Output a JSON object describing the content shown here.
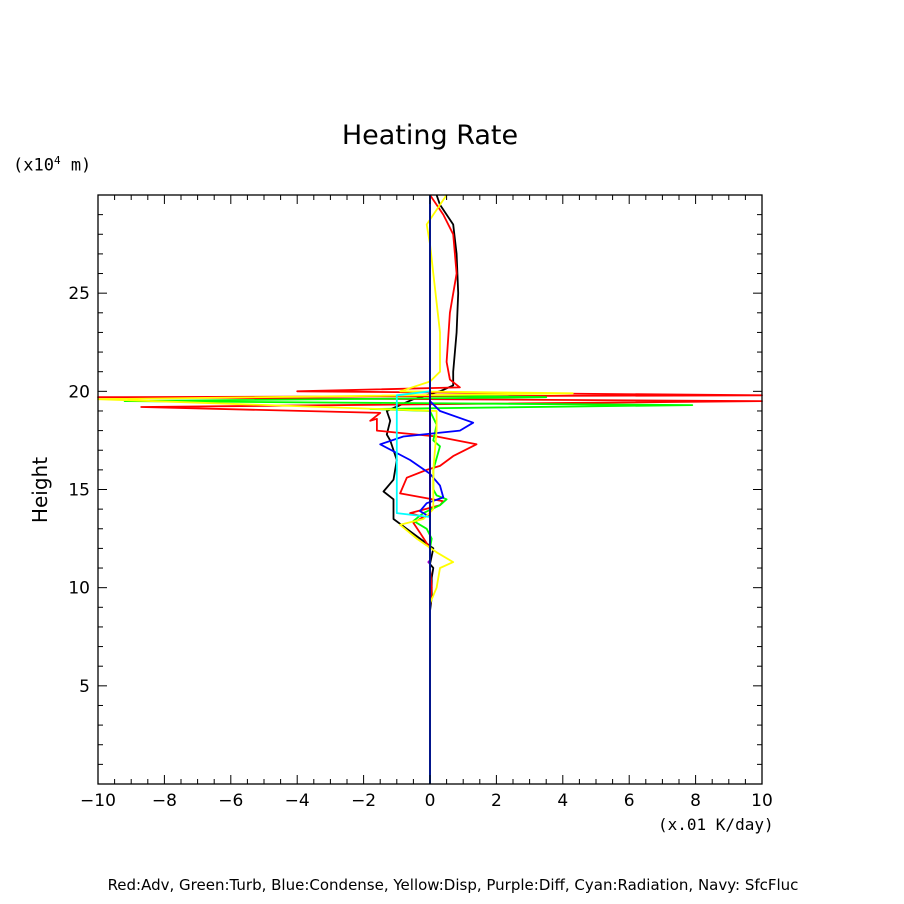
{
  "chart_data": {
    "type": "line",
    "title": "Heating Rate",
    "ylabel": "Height",
    "yunit_prefix": "(x10",
    "yunit_exp": "4",
    "yunit_suffix": " m)",
    "xunit": "(x.01 K/day)",
    "xlim": [
      -10,
      10
    ],
    "ylim": [
      0,
      30
    ],
    "xticks": [
      -10,
      -8,
      -6,
      -4,
      -2,
      0,
      2,
      4,
      6,
      8,
      10
    ],
    "xtick_labels": [
      "−10",
      "−8",
      "−6",
      "−4",
      "−2",
      "0",
      "2",
      "4",
      "6",
      "8",
      "10"
    ],
    "yticks": [
      5,
      10,
      15,
      20,
      25
    ],
    "legend_text": "Red:Adv, Green:Turb, Blue:Condense, Yellow:Disp, Purple:Diff, Cyan:Radiation, Navy: SfcFluc",
    "grid": false,
    "series": [
      {
        "name": "Black",
        "color": "#000000",
        "points": [
          [
            0,
            0
          ],
          [
            0,
            8.8
          ],
          [
            0.05,
            9.5
          ],
          [
            0.05,
            10.5
          ],
          [
            0.1,
            11
          ],
          [
            0,
            11.2
          ],
          [
            0.1,
            12
          ],
          [
            -0.3,
            12.5
          ],
          [
            -0.7,
            13
          ],
          [
            -1.1,
            13.5
          ],
          [
            -1.1,
            14
          ],
          [
            -1.1,
            14.5
          ],
          [
            -1.4,
            14.9
          ],
          [
            -1.1,
            15.5
          ],
          [
            -1.0,
            16.5
          ],
          [
            -1.2,
            17.5
          ],
          [
            -1.3,
            17.8
          ],
          [
            -1.2,
            18.5
          ],
          [
            -1.3,
            19
          ],
          [
            -0.5,
            19.6
          ],
          [
            0.3,
            20
          ],
          [
            0.7,
            20.3
          ],
          [
            0.7,
            21
          ],
          [
            0.8,
            23
          ],
          [
            0.85,
            25
          ],
          [
            0.8,
            27
          ],
          [
            0.7,
            28.5
          ],
          [
            0.3,
            29.5
          ],
          [
            0.2,
            30
          ]
        ]
      },
      {
        "name": "Red",
        "color": "#ff0000",
        "points": [
          [
            0,
            0
          ],
          [
            0,
            9
          ],
          [
            0.05,
            10
          ],
          [
            0,
            11
          ],
          [
            0,
            12
          ],
          [
            -0.3,
            12.8
          ],
          [
            -0.5,
            13.3
          ],
          [
            -0.2,
            13.6
          ],
          [
            -0.6,
            13.8
          ],
          [
            0.3,
            14.2
          ],
          [
            0.4,
            14.4
          ],
          [
            -0.9,
            14.8
          ],
          [
            -0.7,
            15.6
          ],
          [
            -0.1,
            16
          ],
          [
            0.3,
            16.2
          ],
          [
            0.7,
            16.7
          ],
          [
            1.4,
            17.3
          ],
          [
            0.2,
            17.7
          ],
          [
            -1.0,
            17.9
          ],
          [
            -1.6,
            18
          ],
          [
            -1.6,
            18.6
          ],
          [
            -1.8,
            18.5
          ],
          [
            -1.5,
            18.9
          ],
          [
            -8.7,
            19.2
          ],
          [
            10.5,
            19.5
          ],
          [
            -10.5,
            19.7
          ],
          [
            10.5,
            19.8
          ],
          [
            -4,
            20.0
          ],
          [
            0.9,
            20.2
          ],
          [
            0.6,
            20.6
          ],
          [
            0.5,
            21.5
          ],
          [
            0.6,
            24
          ],
          [
            0.8,
            26
          ],
          [
            0.7,
            28
          ],
          [
            0.4,
            29
          ],
          [
            0.0,
            30
          ]
        ]
      },
      {
        "name": "Green",
        "color": "#00ff00",
        "points": [
          [
            0,
            0
          ],
          [
            0,
            12
          ],
          [
            0.05,
            12.5
          ],
          [
            -0.1,
            13
          ],
          [
            -0.5,
            13.4
          ],
          [
            -0.2,
            13.8
          ],
          [
            0.3,
            14.2
          ],
          [
            0.5,
            14.5
          ],
          [
            0.2,
            14.7
          ],
          [
            0.1,
            15
          ],
          [
            0.1,
            16
          ],
          [
            0.3,
            17.2
          ],
          [
            0.1,
            17.5
          ],
          [
            0.2,
            18.3
          ],
          [
            0,
            19
          ],
          [
            -1.8,
            19.1
          ],
          [
            7.9,
            19.3
          ],
          [
            -9.2,
            19.5
          ],
          [
            3.5,
            19.7
          ],
          [
            0,
            19.8
          ],
          [
            0,
            30
          ]
        ]
      },
      {
        "name": "Blue",
        "color": "#0000ff",
        "points": [
          [
            0,
            0
          ],
          [
            0,
            13.6
          ],
          [
            -0.3,
            13.9
          ],
          [
            -0.1,
            14.3
          ],
          [
            0.4,
            14.6
          ],
          [
            0.3,
            15.2
          ],
          [
            0,
            15.8
          ],
          [
            -0.6,
            16.5
          ],
          [
            -1.5,
            17.3
          ],
          [
            -0.8,
            17.7
          ],
          [
            0.9,
            18
          ],
          [
            1.3,
            18.4
          ],
          [
            0.3,
            19
          ],
          [
            0,
            19.5
          ],
          [
            0,
            30
          ]
        ]
      },
      {
        "name": "Yellow",
        "color": "#ffff00",
        "points": [
          [
            0,
            0
          ],
          [
            0,
            9.2
          ],
          [
            0.2,
            10
          ],
          [
            0.3,
            11
          ],
          [
            0.7,
            11.3
          ],
          [
            0.2,
            11.8
          ],
          [
            -0.4,
            12.5
          ],
          [
            -0.9,
            13.2
          ],
          [
            -0.2,
            13.5
          ],
          [
            0.1,
            14
          ],
          [
            0.1,
            16
          ],
          [
            0.2,
            18
          ],
          [
            0.2,
            19
          ],
          [
            -10.5,
            19.6
          ],
          [
            4.3,
            19.9
          ],
          [
            -0.9,
            20.0
          ],
          [
            0,
            20.5
          ],
          [
            0.3,
            21
          ],
          [
            0.3,
            23
          ],
          [
            0.1,
            26
          ],
          [
            0,
            27.5
          ],
          [
            -0.1,
            28.5
          ],
          [
            0.3,
            29.5
          ],
          [
            0.5,
            30
          ]
        ]
      },
      {
        "name": "Purple",
        "color": "#9900cc",
        "points": [
          [
            0,
            0
          ],
          [
            0,
            11.2
          ],
          [
            -0.05,
            11.3
          ],
          [
            0,
            11.4
          ],
          [
            0,
            30
          ]
        ]
      },
      {
        "name": "Cyan",
        "color": "#00ffff",
        "points": [
          [
            0,
            0
          ],
          [
            0,
            13.6
          ],
          [
            -1.0,
            13.8
          ],
          [
            -1.0,
            17.8
          ],
          [
            -1.0,
            19.8
          ],
          [
            -0.5,
            19.9
          ],
          [
            0,
            20
          ],
          [
            0,
            30
          ]
        ]
      },
      {
        "name": "Navy",
        "color": "#000080",
        "points": [
          [
            0,
            0
          ],
          [
            0,
            30
          ]
        ]
      }
    ]
  }
}
